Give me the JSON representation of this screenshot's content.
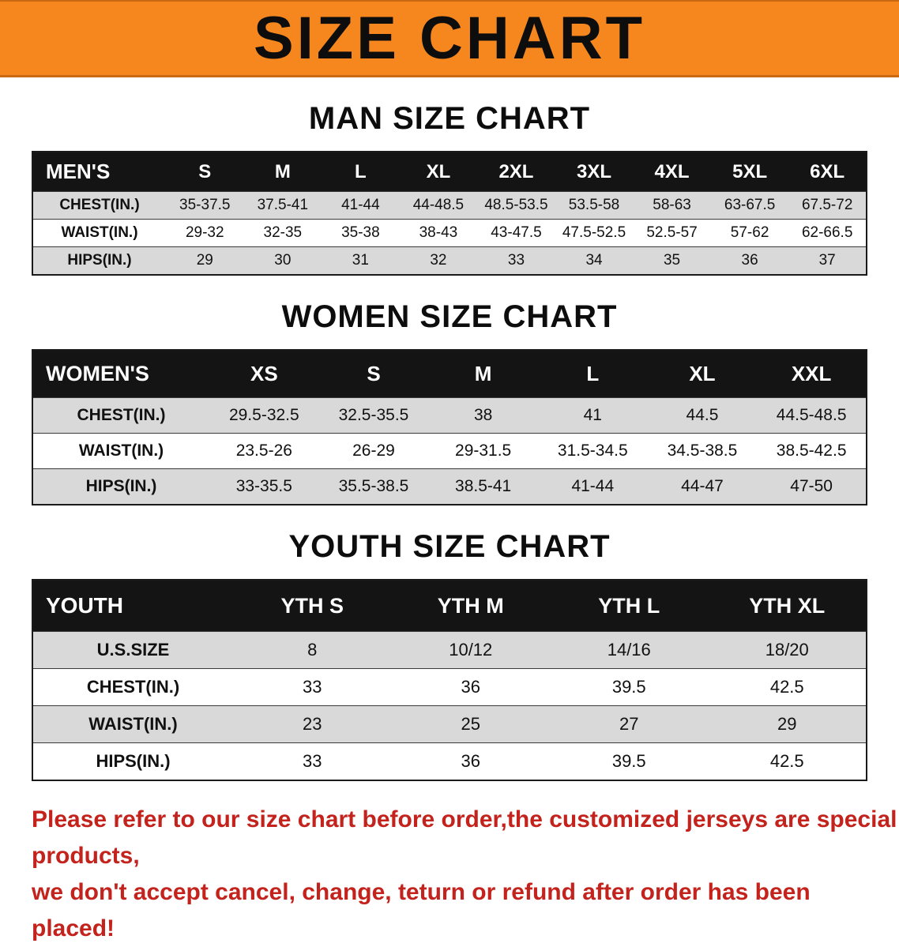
{
  "banner": {
    "title": "SIZE CHART",
    "bg_color": "#f6871f",
    "text_color": "#0d0d0d"
  },
  "sections": [
    {
      "heading": "MAN SIZE CHART",
      "table": {
        "header": [
          "MEN'S",
          "S",
          "M",
          "L",
          "XL",
          "2XL",
          "3XL",
          "4XL",
          "5XL",
          "6XL"
        ],
        "rows": [
          [
            "CHEST(IN.)",
            "35-37.5",
            "37.5-41",
            "41-44",
            "44-48.5",
            "48.5-53.5",
            "53.5-58",
            "58-63",
            "63-67.5",
            "67.5-72"
          ],
          [
            "WAIST(IN.)",
            "29-32",
            "32-35",
            "35-38",
            "38-43",
            "43-47.5",
            "47.5-52.5",
            "52.5-57",
            "57-62",
            "62-66.5"
          ],
          [
            "HIPS(IN.)",
            "29",
            "30",
            "31",
            "32",
            "33",
            "34",
            "35",
            "36",
            "37"
          ]
        ]
      }
    },
    {
      "heading": "WOMEN SIZE CHART",
      "table": {
        "header": [
          "WOMEN'S",
          "XS",
          "S",
          "M",
          "L",
          "XL",
          "XXL"
        ],
        "rows": [
          [
            "CHEST(IN.)",
            "29.5-32.5",
            "32.5-35.5",
            "38",
            "41",
            "44.5",
            "44.5-48.5"
          ],
          [
            "WAIST(IN.)",
            "23.5-26",
            "26-29",
            "29-31.5",
            "31.5-34.5",
            "34.5-38.5",
            "38.5-42.5"
          ],
          [
            "HIPS(IN.)",
            "33-35.5",
            "35.5-38.5",
            "38.5-41",
            "41-44",
            "44-47",
            "47-50"
          ]
        ]
      }
    },
    {
      "heading": "YOUTH SIZE CHART",
      "table": {
        "header": [
          "YOUTH",
          "YTH S",
          "YTH M",
          "YTH L",
          "YTH XL"
        ],
        "rows": [
          [
            "U.S.SIZE",
            "8",
            "10/12",
            "14/16",
            "18/20"
          ],
          [
            "CHEST(IN.)",
            "33",
            "36",
            "39.5",
            "42.5"
          ],
          [
            "WAIST(IN.)",
            "23",
            "25",
            "27",
            "29"
          ],
          [
            "HIPS(IN.)",
            "33",
            "36",
            "39.5",
            "42.5"
          ]
        ]
      }
    }
  ],
  "disclaimer": {
    "line1": "Please refer to our size chart before order,the customized jerseys are special products,",
    "line2": "we don't accept cancel, change, teturn or refund after order has been placed!",
    "text_color": "#c3231c"
  }
}
